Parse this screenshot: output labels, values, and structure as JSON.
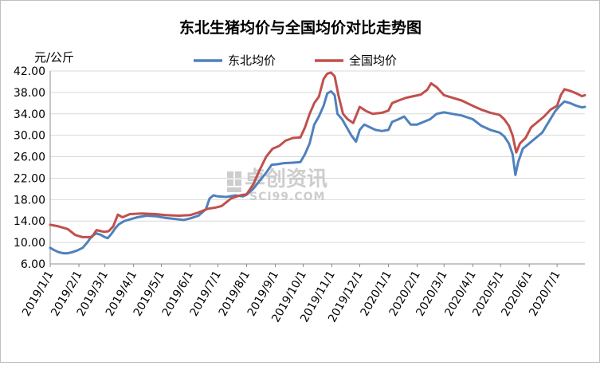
{
  "chart_data": {
    "type": "line",
    "title": "东北生猪均价与全国均价对比走势图",
    "ylabel": "元/公斤",
    "xlabel": "",
    "ylim": [
      6,
      42
    ],
    "yticks": [
      "6.00",
      "10.00",
      "14.00",
      "18.00",
      "22.00",
      "26.00",
      "30.00",
      "34.00",
      "38.00",
      "42.00"
    ],
    "x_range": [
      "2019/1/1",
      "2020/7/31"
    ],
    "x_tick_labels": [
      "2019/1/1",
      "2019/2/1",
      "2019/3/1",
      "2019/4/1",
      "2019/5/1",
      "2019/6/1",
      "2019/7/1",
      "2019/8/1",
      "2019/9/1",
      "2019/10/1",
      "2019/11/1",
      "2019/12/1",
      "2020/1/1",
      "2020/2/1",
      "2020/3/1",
      "2020/4/1",
      "2020/5/1",
      "2020/6/1",
      "2020/7/1"
    ],
    "grid": "horizontal",
    "legend_position": "top",
    "watermark": {
      "text": "卓创资讯",
      "sub": "SCI99.COM",
      "icon": "sci99-logo-icon"
    },
    "series": [
      {
        "name": "东北均价",
        "color": "#4f81bd",
        "points": [
          [
            "2019/1/1",
            9.0
          ],
          [
            "2019/1/5",
            8.6
          ],
          [
            "2019/1/10",
            8.2
          ],
          [
            "2019/1/15",
            8.0
          ],
          [
            "2019/1/20",
            8.0
          ],
          [
            "2019/1/25",
            8.2
          ],
          [
            "2019/1/30",
            8.5
          ],
          [
            "2019/2/5",
            9.0
          ],
          [
            "2019/2/10",
            10.0
          ],
          [
            "2019/2/15",
            11.2
          ],
          [
            "2019/2/20",
            11.7
          ],
          [
            "2019/2/25",
            11.4
          ],
          [
            "2019/3/1",
            11.0
          ],
          [
            "2019/3/4",
            10.8
          ],
          [
            "2019/3/8",
            11.6
          ],
          [
            "2019/3/12",
            12.6
          ],
          [
            "2019/3/16",
            13.4
          ],
          [
            "2019/3/22",
            14.0
          ],
          [
            "2019/3/28",
            14.3
          ],
          [
            "2019/4/5",
            14.7
          ],
          [
            "2019/4/15",
            15.0
          ],
          [
            "2019/4/25",
            14.9
          ],
          [
            "2019/5/5",
            14.6
          ],
          [
            "2019/5/15",
            14.4
          ],
          [
            "2019/5/25",
            14.2
          ],
          [
            "2019/6/1",
            14.5
          ],
          [
            "2019/6/10",
            15.0
          ],
          [
            "2019/6/18",
            16.2
          ],
          [
            "2019/6/22",
            18.2
          ],
          [
            "2019/6/26",
            18.8
          ],
          [
            "2019/7/1",
            18.6
          ],
          [
            "2019/7/10",
            18.5
          ],
          [
            "2019/7/20",
            18.8
          ],
          [
            "2019/7/28",
            18.6
          ],
          [
            "2019/8/1",
            18.9
          ],
          [
            "2019/8/8",
            20.0
          ],
          [
            "2019/8/15",
            21.5
          ],
          [
            "2019/8/22",
            23.0
          ],
          [
            "2019/8/28",
            24.5
          ],
          [
            "2019/9/3",
            24.6
          ],
          [
            "2019/9/10",
            24.8
          ],
          [
            "2019/9/20",
            24.9
          ],
          [
            "2019/9/28",
            25.0
          ],
          [
            "2019/10/3",
            26.5
          ],
          [
            "2019/10/8",
            28.5
          ],
          [
            "2019/10/13",
            32.0
          ],
          [
            "2019/10/18",
            33.5
          ],
          [
            "2019/10/23",
            35.5
          ],
          [
            "2019/10/27",
            37.8
          ],
          [
            "2019/10/31",
            38.2
          ],
          [
            "2019/11/4",
            37.5
          ],
          [
            "2019/11/7",
            34.0
          ],
          [
            "2019/11/12",
            33.0
          ],
          [
            "2019/11/17",
            31.5
          ],
          [
            "2019/11/22",
            30.0
          ],
          [
            "2019/11/27",
            28.8
          ],
          [
            "2019/12/1",
            31.0
          ],
          [
            "2019/12/6",
            32.0
          ],
          [
            "2019/12/12",
            31.5
          ],
          [
            "2019/12/18",
            31.0
          ],
          [
            "2019/12/25",
            30.8
          ],
          [
            "2020/1/1",
            31.0
          ],
          [
            "2020/1/5",
            32.5
          ],
          [
            "2020/1/12",
            33.0
          ],
          [
            "2020/1/18",
            33.5
          ],
          [
            "2020/1/25",
            32.0
          ],
          [
            "2020/2/1",
            32.0
          ],
          [
            "2020/2/8",
            32.5
          ],
          [
            "2020/2/15",
            33.0
          ],
          [
            "2020/2/22",
            34.0
          ],
          [
            "2020/3/1",
            34.3
          ],
          [
            "2020/3/10",
            34.0
          ],
          [
            "2020/3/20",
            33.7
          ],
          [
            "2020/4/1",
            33.0
          ],
          [
            "2020/4/10",
            31.8
          ],
          [
            "2020/4/20",
            31.0
          ],
          [
            "2020/4/30",
            30.5
          ],
          [
            "2020/5/5",
            29.8
          ],
          [
            "2020/5/10",
            28.5
          ],
          [
            "2020/5/14",
            26.5
          ],
          [
            "2020/5/17",
            22.6
          ],
          [
            "2020/5/20",
            25.0
          ],
          [
            "2020/5/25",
            27.5
          ],
          [
            "2020/6/1",
            28.5
          ],
          [
            "2020/6/8",
            29.5
          ],
          [
            "2020/6/15",
            30.5
          ],
          [
            "2020/6/22",
            32.5
          ],
          [
            "2020/6/29",
            34.5
          ],
          [
            "2020/7/4",
            35.5
          ],
          [
            "2020/7/9",
            36.3
          ],
          [
            "2020/7/15",
            36.0
          ],
          [
            "2020/7/22",
            35.5
          ],
          [
            "2020/7/28",
            35.2
          ],
          [
            "2020/7/31",
            35.3
          ]
        ]
      },
      {
        "name": "全国均价",
        "color": "#c0504d",
        "points": [
          [
            "2019/1/1",
            13.3
          ],
          [
            "2019/1/10",
            13.0
          ],
          [
            "2019/1/20",
            12.5
          ],
          [
            "2019/1/28",
            11.4
          ],
          [
            "2019/2/5",
            11.0
          ],
          [
            "2019/2/15",
            11.0
          ],
          [
            "2019/2/20",
            12.3
          ],
          [
            "2019/2/28",
            12.0
          ],
          [
            "2019/3/5",
            12.1
          ],
          [
            "2019/3/10",
            13.0
          ],
          [
            "2019/3/15",
            15.2
          ],
          [
            "2019/3/20",
            14.7
          ],
          [
            "2019/3/28",
            15.3
          ],
          [
            "2019/4/10",
            15.4
          ],
          [
            "2019/4/25",
            15.3
          ],
          [
            "2019/5/5",
            15.1
          ],
          [
            "2019/5/20",
            15.0
          ],
          [
            "2019/6/1",
            15.1
          ],
          [
            "2019/6/10",
            15.6
          ],
          [
            "2019/6/20",
            16.3
          ],
          [
            "2019/6/28",
            16.5
          ],
          [
            "2019/7/5",
            16.8
          ],
          [
            "2019/7/15",
            18.2
          ],
          [
            "2019/7/25",
            18.8
          ],
          [
            "2019/8/1",
            19.0
          ],
          [
            "2019/8/8",
            20.8
          ],
          [
            "2019/8/15",
            23.5
          ],
          [
            "2019/8/22",
            26.0
          ],
          [
            "2019/8/29",
            27.5
          ],
          [
            "2019/9/5",
            28.0
          ],
          [
            "2019/9/12",
            29.0
          ],
          [
            "2019/9/20",
            29.5
          ],
          [
            "2019/9/28",
            29.6
          ],
          [
            "2019/10/3",
            31.5
          ],
          [
            "2019/10/8",
            34.0
          ],
          [
            "2019/10/13",
            36.0
          ],
          [
            "2019/10/18",
            37.2
          ],
          [
            "2019/10/23",
            40.5
          ],
          [
            "2019/10/27",
            41.5
          ],
          [
            "2019/10/31",
            41.7
          ],
          [
            "2019/11/4",
            41.0
          ],
          [
            "2019/11/8",
            37.5
          ],
          [
            "2019/11/13",
            34.0
          ],
          [
            "2019/11/18",
            33.0
          ],
          [
            "2019/11/24",
            32.3
          ],
          [
            "2019/12/1",
            35.3
          ],
          [
            "2019/12/8",
            34.5
          ],
          [
            "2019/12/15",
            34.0
          ],
          [
            "2019/12/25",
            34.2
          ],
          [
            "2020/1/1",
            34.6
          ],
          [
            "2020/1/5",
            36.0
          ],
          [
            "2020/1/12",
            36.5
          ],
          [
            "2020/1/20",
            37.0
          ],
          [
            "2020/1/28",
            37.3
          ],
          [
            "2020/2/5",
            37.6
          ],
          [
            "2020/2/12",
            38.5
          ],
          [
            "2020/2/16",
            39.7
          ],
          [
            "2020/2/22",
            39.0
          ],
          [
            "2020/3/1",
            37.5
          ],
          [
            "2020/3/10",
            37.0
          ],
          [
            "2020/3/20",
            36.5
          ],
          [
            "2020/4/1",
            35.5
          ],
          [
            "2020/4/10",
            34.8
          ],
          [
            "2020/4/20",
            34.2
          ],
          [
            "2020/4/30",
            33.8
          ],
          [
            "2020/5/5",
            33.0
          ],
          [
            "2020/5/10",
            31.8
          ],
          [
            "2020/5/14",
            30.0
          ],
          [
            "2020/5/18",
            26.8
          ],
          [
            "2020/5/22",
            28.5
          ],
          [
            "2020/5/28",
            29.5
          ],
          [
            "2020/6/3",
            31.5
          ],
          [
            "2020/6/10",
            32.5
          ],
          [
            "2020/6/17",
            33.5
          ],
          [
            "2020/6/24",
            34.8
          ],
          [
            "2020/7/1",
            35.5
          ],
          [
            "2020/7/5",
            37.5
          ],
          [
            "2020/7/9",
            38.6
          ],
          [
            "2020/7/15",
            38.3
          ],
          [
            "2020/7/22",
            37.8
          ],
          [
            "2020/7/28",
            37.3
          ],
          [
            "2020/7/31",
            37.5
          ]
        ]
      }
    ]
  }
}
